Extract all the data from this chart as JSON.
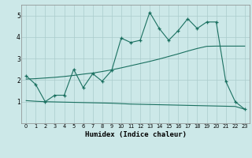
{
  "xlabel": "Humidex (Indice chaleur)",
  "bg_color": "#cce8e8",
  "grid_color": "#aacccc",
  "line_color": "#1a7060",
  "xlim": [
    -0.5,
    23.5
  ],
  "ylim": [
    0,
    5.5
  ],
  "xticks": [
    0,
    1,
    2,
    3,
    4,
    5,
    6,
    7,
    8,
    9,
    10,
    11,
    12,
    13,
    14,
    15,
    16,
    17,
    18,
    19,
    20,
    21,
    22,
    23
  ],
  "yticks": [
    1,
    2,
    3,
    4,
    5
  ],
  "line1_x": [
    0,
    1,
    2,
    3,
    4,
    5,
    6,
    7,
    8,
    9,
    10,
    11,
    12,
    13,
    14,
    15,
    16,
    17,
    18,
    19,
    20,
    21,
    22,
    23
  ],
  "line1_y": [
    2.2,
    1.8,
    1.0,
    1.3,
    1.3,
    2.5,
    1.65,
    2.3,
    1.95,
    2.45,
    3.95,
    3.75,
    3.85,
    5.15,
    4.4,
    3.85,
    4.3,
    4.85,
    4.4,
    4.7,
    4.7,
    1.95,
    1.0,
    0.65
  ],
  "line2_x": [
    0,
    1,
    2,
    3,
    4,
    5,
    6,
    7,
    8,
    9,
    10,
    11,
    12,
    13,
    14,
    15,
    16,
    17,
    18,
    19,
    20,
    21,
    22,
    23
  ],
  "line2_y": [
    2.05,
    2.07,
    2.1,
    2.13,
    2.17,
    2.22,
    2.28,
    2.33,
    2.4,
    2.48,
    2.57,
    2.67,
    2.77,
    2.87,
    2.98,
    3.1,
    3.22,
    3.35,
    3.47,
    3.57,
    3.58,
    3.58,
    3.58,
    3.58
  ],
  "line3_x": [
    0,
    1,
    2,
    3,
    4,
    5,
    6,
    7,
    8,
    9,
    10,
    11,
    12,
    13,
    14,
    15,
    16,
    17,
    18,
    19,
    20,
    21,
    22,
    23
  ],
  "line3_y": [
    1.05,
    1.02,
    1.0,
    0.99,
    0.98,
    0.97,
    0.96,
    0.95,
    0.94,
    0.93,
    0.91,
    0.89,
    0.88,
    0.87,
    0.86,
    0.85,
    0.84,
    0.83,
    0.82,
    0.81,
    0.8,
    0.79,
    0.78,
    0.65
  ]
}
